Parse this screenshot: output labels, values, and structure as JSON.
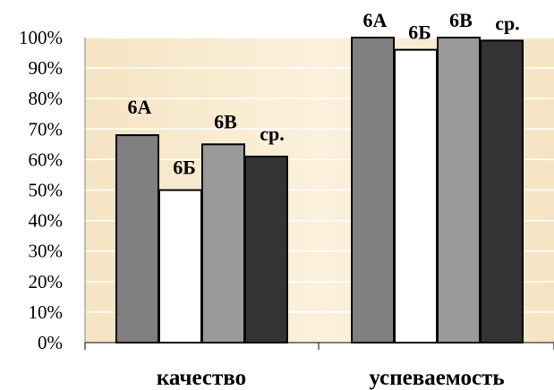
{
  "chart_data": {
    "type": "bar",
    "categories": [
      "качество",
      "успеваемость"
    ],
    "series": [
      {
        "name": "6А",
        "values": [
          68,
          100
        ],
        "color": "#808080"
      },
      {
        "name": "6Б",
        "values": [
          50,
          96
        ],
        "color": "#ffffff"
      },
      {
        "name": "6В",
        "values": [
          65,
          100
        ],
        "color": "#9a9a9a"
      },
      {
        "name": "ср.",
        "values": [
          61,
          99
        ],
        "color": "#333333"
      }
    ],
    "ylim": [
      0,
      100
    ],
    "y_ticks": [
      {
        "value": 0,
        "label": "0%"
      },
      {
        "value": 10,
        "label": "10%"
      },
      {
        "value": 20,
        "label": "20%"
      },
      {
        "value": 30,
        "label": "30%"
      },
      {
        "value": 40,
        "label": "40%"
      },
      {
        "value": 50,
        "label": "50%"
      },
      {
        "value": 60,
        "label": "60%"
      },
      {
        "value": 70,
        "label": "70%"
      },
      {
        "value": 80,
        "label": "80%"
      },
      {
        "value": 90,
        "label": "90%"
      },
      {
        "value": 100,
        "label": "100%"
      }
    ],
    "grid": true,
    "legend": "none",
    "data_labels": "series name above each bar",
    "plot_background": "#f7e8c8",
    "gridline_color": "#ffffff"
  }
}
